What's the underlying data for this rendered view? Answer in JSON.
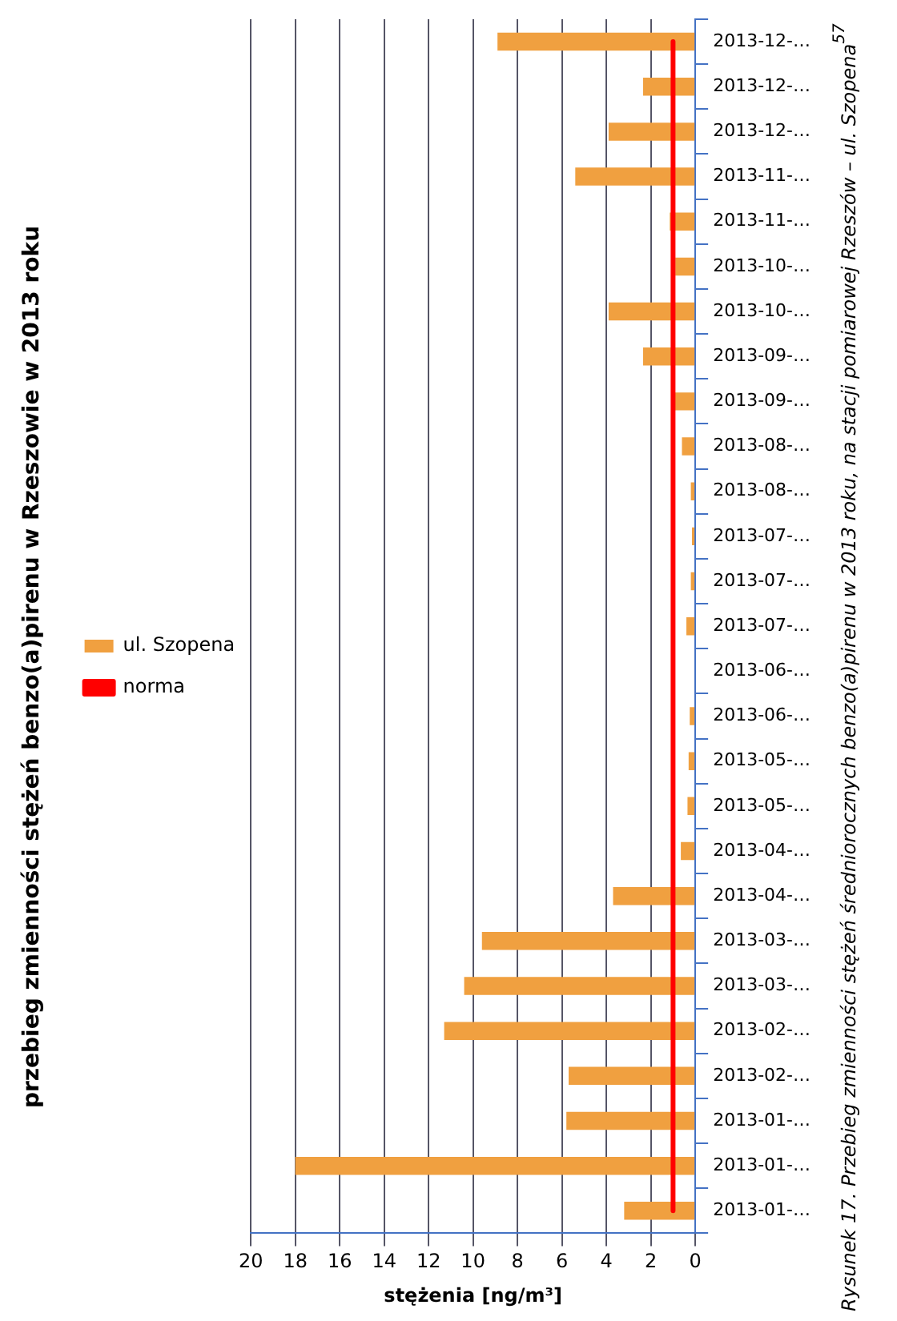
{
  "chart_data": {
    "type": "bar",
    "orientation": "horizontal",
    "title": "przebieg zmienności stężeń benzo(a)pirenu w Rzeszowie w 2013 roku",
    "xlabel": "stężenia [ng/m³]",
    "categories": [
      "2013-12-…",
      "2013-12-…",
      "2013-12-…",
      "2013-11-…",
      "2013-11-…",
      "2013-10-…",
      "2013-10-…",
      "2013-09-…",
      "2013-09-…",
      "2013-08-…",
      "2013-08-…",
      "2013-07-…",
      "2013-07-…",
      "2013-07-…",
      "2013-06-…",
      "2013-06-…",
      "2013-05-…",
      "2013-05-…",
      "2013-04-…",
      "2013-04-…",
      "2013-03-…",
      "2013-03-…",
      "2013-02-…",
      "2013-02-…",
      "2013-01-…",
      "2013-01-…",
      "2013-01-…"
    ],
    "series": [
      {
        "name": "ul. Szopena",
        "color": "#f0a040",
        "values": [
          8.9,
          2.35,
          3.9,
          5.4,
          1.15,
          0.9,
          3.9,
          2.35,
          1.0,
          0.6,
          0.2,
          0.15,
          0.2,
          0.4,
          null,
          0.25,
          0.3,
          0.35,
          0.65,
          3.7,
          9.6,
          10.4,
          11.3,
          5.7,
          5.8,
          18.0,
          3.2
        ]
      },
      {
        "name": "norma",
        "type": "line",
        "color": "#ff0000",
        "values": [
          1,
          1,
          1,
          1,
          1,
          1,
          1,
          1,
          1,
          1,
          1,
          1,
          1,
          1,
          1,
          1,
          1,
          1,
          1,
          1,
          1,
          1,
          1,
          1,
          1,
          1,
          1
        ]
      }
    ],
    "xlim": [
      20,
      0
    ],
    "xticks": [
      20,
      18,
      16,
      14,
      12,
      10,
      8,
      6,
      4,
      2,
      0
    ],
    "grid": "x",
    "legend": "left",
    "marker": "none",
    "annotations": [
      "Rysunek 17. Przebieg zmienności stężeń średniorocznych benzo(a)pirenu w 2013 roku, na stacji pomiarowej Rzeszów – ul. Szopena$^{57}$"
    ]
  }
}
